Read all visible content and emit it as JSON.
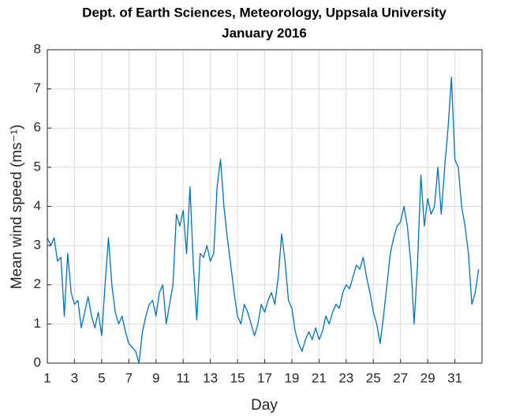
{
  "chart_data": {
    "type": "line",
    "title": "Dept. of Earth Sciences, Meteorology, Uppsala University",
    "subtitle": "January 2016",
    "xlabel": "Day",
    "ylabel": "Mean wind speed (ms⁻¹)",
    "x": [
      1,
      1.25,
      1.5,
      1.75,
      2,
      2.25,
      2.5,
      2.75,
      3,
      3.25,
      3.5,
      3.75,
      4,
      4.25,
      4.5,
      4.75,
      5,
      5.25,
      5.5,
      5.75,
      6,
      6.25,
      6.5,
      6.75,
      7,
      7.25,
      7.5,
      7.75,
      8,
      8.25,
      8.5,
      8.75,
      9,
      9.25,
      9.5,
      9.75,
      10,
      10.25,
      10.5,
      10.75,
      11,
      11.25,
      11.5,
      11.75,
      12,
      12.25,
      12.5,
      12.75,
      13,
      13.25,
      13.5,
      13.75,
      14,
      14.25,
      14.5,
      14.75,
      15,
      15.25,
      15.5,
      15.75,
      16,
      16.25,
      16.5,
      16.75,
      17,
      17.25,
      17.5,
      17.75,
      18,
      18.25,
      18.5,
      18.75,
      19,
      19.25,
      19.5,
      19.75,
      20,
      20.25,
      20.5,
      20.75,
      21,
      21.25,
      21.5,
      21.75,
      22,
      22.25,
      22.5,
      22.75,
      23,
      23.25,
      23.5,
      23.75,
      24,
      24.25,
      24.5,
      24.75,
      25,
      25.25,
      25.5,
      25.75,
      26,
      26.25,
      26.5,
      26.75,
      27,
      27.25,
      27.5,
      27.75,
      28,
      28.25,
      28.5,
      28.75,
      29,
      29.25,
      29.5,
      29.75,
      30,
      30.25,
      30.5,
      30.75,
      31,
      31.25,
      31.5,
      31.75,
      32,
      32.25,
      32.5,
      32.75
    ],
    "series": [
      {
        "name": "Mean wind speed",
        "color": "#0072bd",
        "values": [
          3.2,
          3.0,
          3.2,
          2.6,
          2.7,
          1.2,
          2.8,
          1.8,
          1.5,
          1.6,
          0.9,
          1.3,
          1.7,
          1.2,
          0.9,
          1.3,
          0.7,
          2.0,
          3.2,
          2.0,
          1.3,
          1.0,
          1.2,
          0.8,
          0.5,
          0.4,
          0.3,
          0.0,
          0.8,
          1.2,
          1.5,
          1.6,
          1.2,
          1.8,
          2.0,
          1.0,
          1.5,
          2.0,
          3.8,
          3.5,
          3.9,
          2.8,
          4.5,
          2.5,
          1.1,
          2.8,
          2.7,
          3.0,
          2.6,
          2.8,
          4.5,
          5.2,
          4.0,
          3.2,
          2.5,
          1.8,
          1.2,
          1.0,
          1.5,
          1.3,
          1.0,
          0.7,
          1.0,
          1.5,
          1.3,
          1.6,
          1.8,
          1.5,
          2.2,
          3.3,
          2.6,
          1.6,
          1.4,
          0.8,
          0.5,
          0.3,
          0.6,
          0.8,
          0.6,
          0.9,
          0.6,
          0.8,
          1.2,
          1.0,
          1.3,
          1.5,
          1.4,
          1.8,
          2.0,
          1.9,
          2.2,
          2.5,
          2.4,
          2.7,
          2.2,
          1.8,
          1.3,
          1.0,
          0.5,
          1.2,
          2.0,
          2.8,
          3.2,
          3.5,
          3.6,
          4.0,
          3.5,
          2.6,
          1.0,
          2.5,
          4.8,
          3.5,
          4.2,
          3.8,
          4.0,
          5.0,
          3.8,
          5.0,
          6.0,
          7.3,
          5.2,
          5.0,
          4.0,
          3.5,
          2.8,
          1.5,
          1.8,
          2.4
        ]
      }
    ],
    "xlim": [
      1,
      33
    ],
    "xticks": [
      1,
      3,
      5,
      7,
      9,
      11,
      13,
      15,
      17,
      19,
      21,
      23,
      25,
      27,
      29,
      31
    ],
    "ylim": [
      0,
      8
    ],
    "yticks": [
      0,
      1,
      2,
      3,
      4,
      5,
      6,
      7,
      8
    ],
    "grid": true
  }
}
